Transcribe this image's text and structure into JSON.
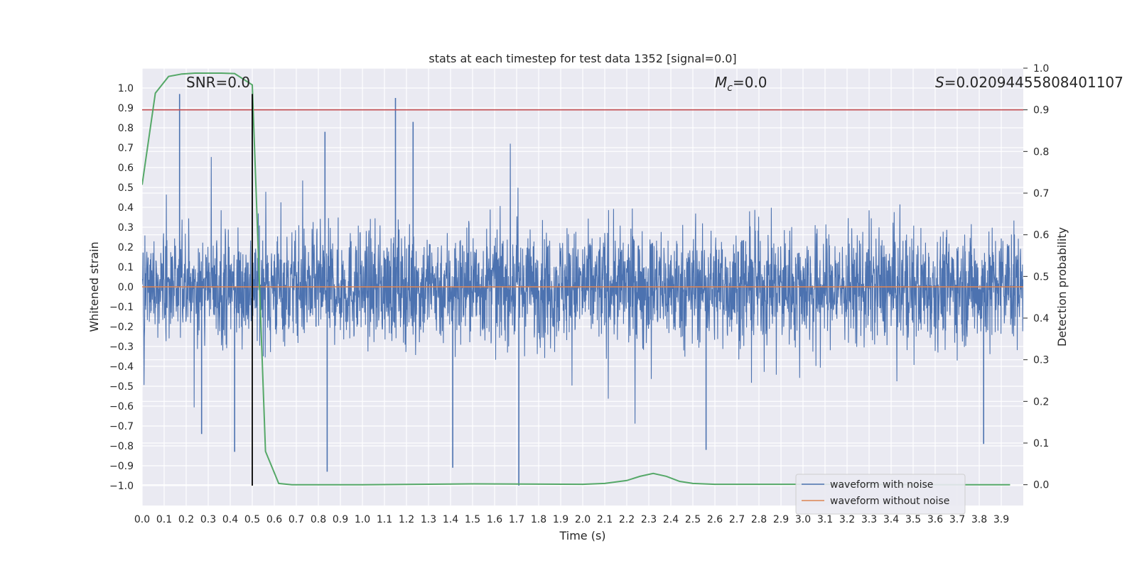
{
  "chart_data": {
    "type": "line",
    "title": "stats at each timestep for test data 1352 [signal=0.0]",
    "xlabel": "Time (s)",
    "ylabel_left": "Whitened strain",
    "ylabel_right": "Detection probability",
    "xlim": [
      0.0,
      4.0
    ],
    "ylim_left": [
      -1.1,
      1.1
    ],
    "ylim_right": [
      -0.05,
      1.0
    ],
    "grid": true,
    "background": "#eaeaf2",
    "x_ticks": [
      "0.0",
      "0.1",
      "0.2",
      "0.3",
      "0.4",
      "0.5",
      "0.6",
      "0.7",
      "0.8",
      "0.9",
      "1.0",
      "1.1",
      "1.2",
      "1.3",
      "1.4",
      "1.5",
      "1.6",
      "1.7",
      "1.8",
      "1.9",
      "2.0",
      "2.1",
      "2.2",
      "2.3",
      "2.4",
      "2.5",
      "2.6",
      "2.7",
      "2.8",
      "2.9",
      "3.0",
      "3.1",
      "3.2",
      "3.3",
      "3.4",
      "3.5",
      "3.6",
      "3.7",
      "3.8",
      "3.9"
    ],
    "y_ticks_left": [
      "1.0",
      "0.9",
      "0.8",
      "0.7",
      "0.6",
      "0.5",
      "0.4",
      "0.3",
      "0.2",
      "0.1",
      "0.0",
      "-0.1",
      "-0.2",
      "-0.3",
      "-0.4",
      "-0.5",
      "-0.6",
      "-0.7",
      "-0.8",
      "-0.9",
      "-1.0"
    ],
    "y_ticks_right": [
      "1.0",
      "0.9",
      "0.8",
      "0.7",
      "0.6",
      "0.5",
      "0.4",
      "0.3",
      "0.2",
      "0.1",
      "0.0"
    ],
    "annotations": {
      "snr": "SNR=0.0",
      "mc_symbol": "M",
      "mc_subscript": "c",
      "mc_value": "=0.0",
      "s_symbol": "S",
      "s_value": "=0.02094455808401107"
    },
    "series": [
      {
        "name": "waveform with noise",
        "color": "#4c72b0",
        "axis": "left",
        "description": "dense noise trace, roughly uniform amplitude about ±0.5 with spikes",
        "spikes": [
          {
            "x": 0.17,
            "y": 0.97
          },
          {
            "x": 1.15,
            "y": 0.95
          },
          {
            "x": 1.23,
            "y": 0.83
          },
          {
            "x": 0.83,
            "y": 0.78
          },
          {
            "x": 1.71,
            "y": -1.0
          },
          {
            "x": 0.84,
            "y": -0.93
          },
          {
            "x": 1.41,
            "y": -0.91
          },
          {
            "x": 0.42,
            "y": -0.83
          },
          {
            "x": 2.56,
            "y": -0.82
          },
          {
            "x": 3.82,
            "y": -0.79
          },
          {
            "x": 0.27,
            "y": -0.74
          }
        ]
      },
      {
        "name": "waveform without noise",
        "color": "#dd8452",
        "axis": "left",
        "x": [
          0.0,
          4.0
        ],
        "y": [
          0.0,
          0.0
        ]
      },
      {
        "color": "#55a868",
        "axis": "right",
        "x": [
          0.0,
          0.06,
          0.12,
          0.18,
          0.24,
          0.3,
          0.36,
          0.42,
          0.5,
          0.56,
          0.62,
          0.68,
          0.8,
          1.0,
          1.5,
          2.0,
          2.1,
          2.2,
          2.26,
          2.32,
          2.38,
          2.44,
          2.5,
          2.6,
          3.0,
          3.5,
          3.94
        ],
        "y": [
          0.72,
          0.94,
          0.98,
          0.986,
          0.988,
          0.988,
          0.988,
          0.987,
          0.96,
          0.08,
          0.003,
          0.0,
          0.0,
          0.0,
          0.002,
          0.001,
          0.003,
          0.01,
          0.02,
          0.027,
          0.02,
          0.008,
          0.003,
          0.001,
          0.001,
          0.0,
          0.0
        ]
      }
    ],
    "threshold_line": {
      "color": "#c44e52",
      "axis": "right",
      "y": 0.9
    },
    "marker_line": {
      "color": "#000000",
      "axis": "left",
      "x": 0.5,
      "y_range": [
        -1.0,
        0.97
      ]
    },
    "legend": {
      "position": "lower right",
      "entries": [
        "waveform with noise",
        "waveform without noise"
      ]
    }
  }
}
